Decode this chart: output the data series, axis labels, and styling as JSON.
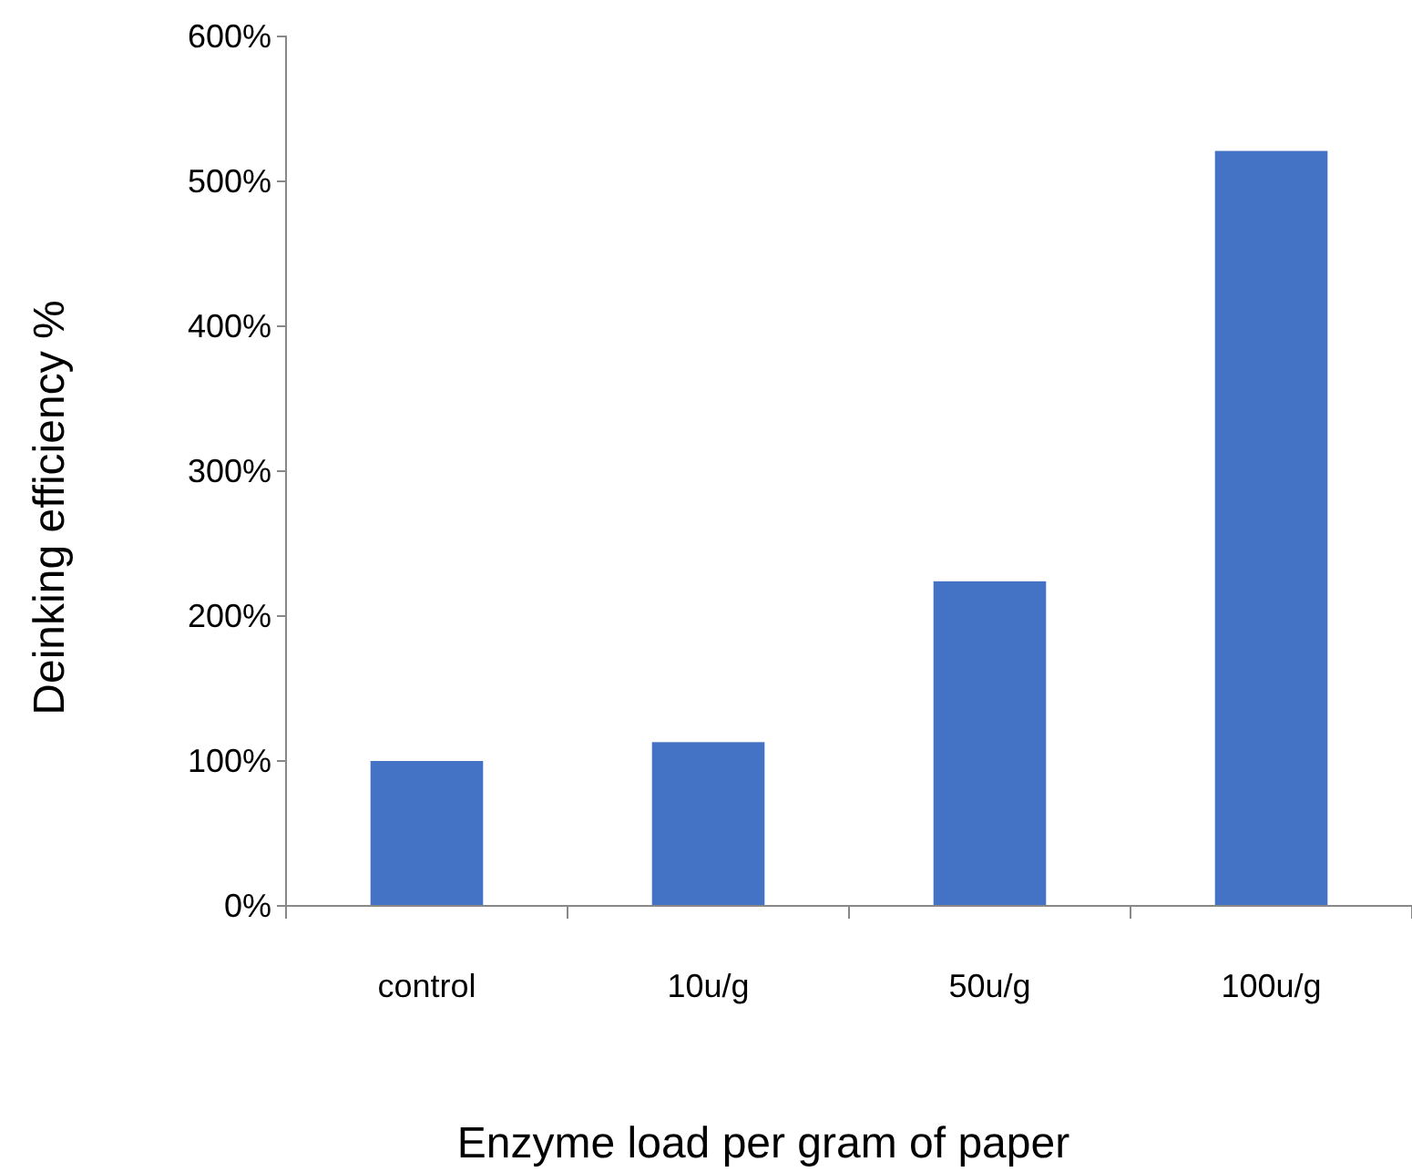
{
  "chart_data": {
    "type": "bar",
    "xlabel": "Enzyme load per gram of paper",
    "ylabel": "Deinking efficiency %",
    "categories": [
      "control",
      "10u/g",
      "50u/g",
      "100u/g"
    ],
    "values": [
      100,
      113,
      224,
      521
    ],
    "color": "#4472c4",
    "ylim": [
      0,
      600
    ],
    "yticks": [
      {
        "value": 0,
        "label": "0%"
      },
      {
        "value": 100,
        "label": "100%"
      },
      {
        "value": 200,
        "label": "200%"
      },
      {
        "value": 300,
        "label": "300%"
      },
      {
        "value": 400,
        "label": "400%"
      },
      {
        "value": 500,
        "label": "500%"
      },
      {
        "value": 600,
        "label": "600%"
      }
    ],
    "grid": false
  }
}
